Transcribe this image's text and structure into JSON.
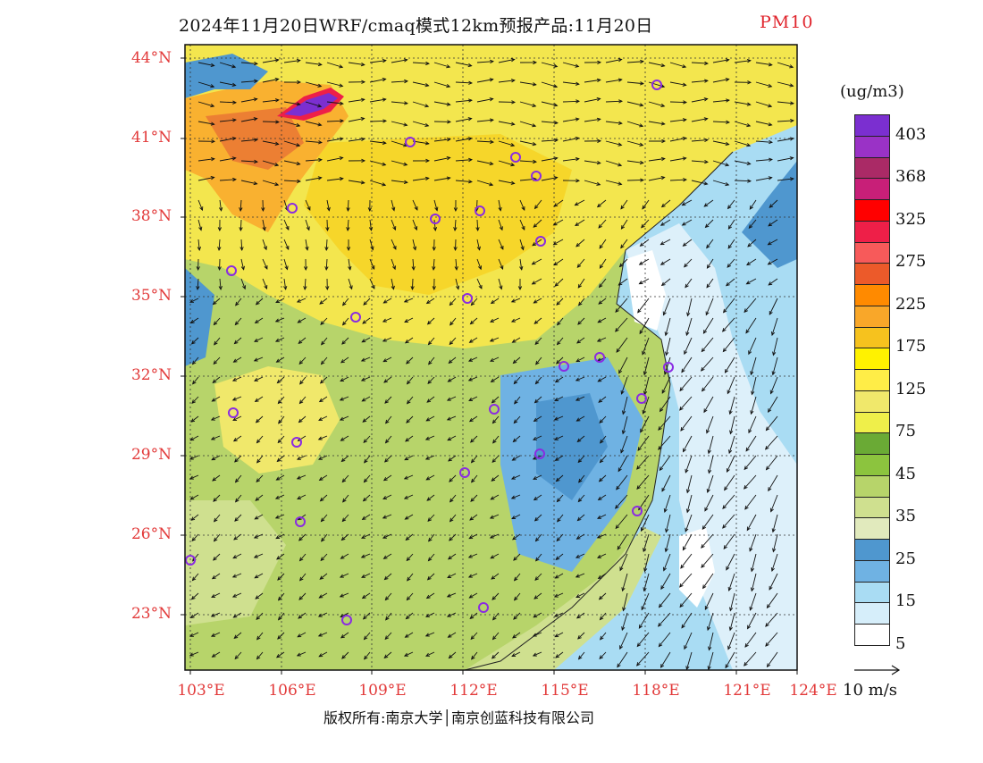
{
  "title": {
    "main": "2024年11月20日WRF/cmaq模式12km预报产品:11月20日",
    "variable": "PM10"
  },
  "map": {
    "lat_labels": [
      "44°N",
      "41°N",
      "38°N",
      "35°N",
      "32°N",
      "29°N",
      "26°N",
      "23°N"
    ],
    "lon_labels": [
      "103°E",
      "106°E",
      "109°E",
      "112°E",
      "115°E",
      "118°E",
      "121°E",
      "124°E"
    ],
    "colors": {
      "ocean_light": "#ddf0fa",
      "ocean_mid": "#a9dcf3",
      "ocean_deep": "#4f97cf",
      "land_green": "#b7d46a",
      "land_yellow": "#f3e64e",
      "hot_purple": "#7b2fd0"
    }
  },
  "legend": {
    "unit": "(ug/m3)",
    "ticks": [
      "403",
      "368",
      "325",
      "275",
      "225",
      "175",
      "125",
      "75",
      "45",
      "35",
      "25",
      "15",
      "5"
    ],
    "colors": [
      "#7b2fd0",
      "#9a32c6",
      "#aa2a66",
      "#c81f78",
      "#ff0000",
      "#ee1f48",
      "#f75a5a",
      "#ec5a2a",
      "#ff8a00",
      "#f9a729",
      "#f6c21e",
      "#fff200",
      "#ffed47",
      "#f0e86b",
      "#efef4a",
      "#6aaa35",
      "#8cc43e",
      "#b7d46a",
      "#cfe08f",
      "#e1eabd",
      "#4f97cf",
      "#6fb2e3",
      "#a9dcf3",
      "#d6eefa",
      "#ffffff"
    ]
  },
  "wind_reference": {
    "label": "10  m/s"
  },
  "footer": {
    "copyright": "版权所有:南京大学│南京创蓝科技有限公司"
  }
}
